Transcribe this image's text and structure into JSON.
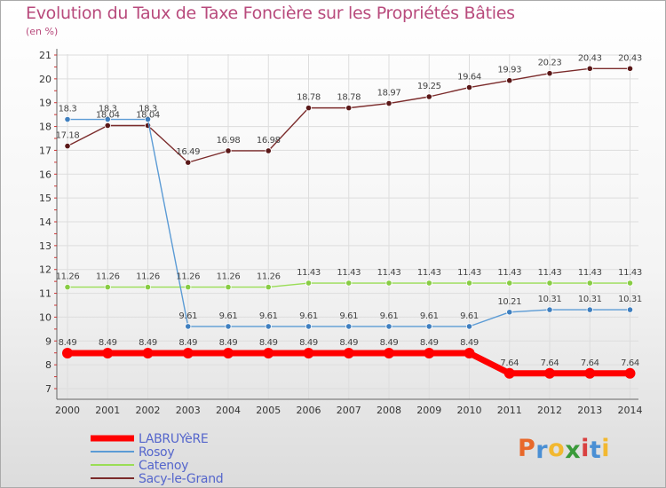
{
  "chart_data": {
    "type": "line",
    "title": "Evolution du Taux de Taxe Foncière sur les Propriétés Bâties",
    "ylabel": "(en %)",
    "xlabel": "",
    "x": [
      "2000",
      "2001",
      "2002",
      "2003",
      "2004",
      "2005",
      "2006",
      "2007",
      "2008",
      "2009",
      "2010",
      "2011",
      "2012",
      "2013",
      "2014"
    ],
    "ylim": [
      7,
      21
    ],
    "yticks": [
      "7",
      "8",
      "9",
      "10",
      "11",
      "12",
      "13",
      "14",
      "15",
      "16",
      "17",
      "18",
      "19",
      "20",
      "21"
    ],
    "grid": true,
    "legend_position": "bottom-left",
    "series": [
      {
        "name": "LABRUYèRE",
        "color": "#ff0000",
        "marker_color": "#ff0000",
        "values": [
          8.49,
          8.49,
          8.49,
          8.49,
          8.49,
          8.49,
          8.49,
          8.49,
          8.49,
          8.49,
          8.49,
          7.64,
          7.64,
          7.64,
          7.64
        ],
        "labels": [
          "8.49",
          "8.49",
          "8.49",
          "8.49",
          "8.49",
          "8.49",
          "8.49",
          "8.49",
          "8.49",
          "8.49",
          "8.49",
          "7.64",
          "7.64",
          "7.64",
          "7.64"
        ],
        "thick": true
      },
      {
        "name": "Rosoy",
        "color": "#5b9bd5",
        "marker_color": "#3f7fbf",
        "values": [
          18.3,
          18.3,
          18.3,
          9.61,
          9.61,
          9.61,
          9.61,
          9.61,
          9.61,
          9.61,
          9.61,
          10.21,
          10.31,
          10.31,
          10.31
        ],
        "labels": [
          "18.3",
          "18.3",
          "18.3",
          "9.61",
          "9.61",
          "9.61",
          "9.61",
          "9.61",
          "9.61",
          "9.61",
          "9.61",
          "10.21",
          "10.31",
          "10.31",
          "10.31"
        ],
        "thick": false
      },
      {
        "name": "Catenoy",
        "color": "#99dd55",
        "marker_color": "#88cc44",
        "values": [
          11.26,
          11.26,
          11.26,
          11.26,
          11.26,
          11.26,
          11.43,
          11.43,
          11.43,
          11.43,
          11.43,
          11.43,
          11.43,
          11.43,
          11.43
        ],
        "labels": [
          "11.26",
          "11.26",
          "11.26",
          "11.26",
          "11.26",
          "11.26",
          "11.43",
          "11.43",
          "11.43",
          "11.43",
          "11.43",
          "11.43",
          "11.43",
          "11.43",
          "11.43"
        ],
        "thick": false
      },
      {
        "name": "Sacy-le-Grand",
        "color": "#7b2b2b",
        "marker_color": "#5a1818",
        "values": [
          17.18,
          18.04,
          18.04,
          16.49,
          16.98,
          16.98,
          18.78,
          18.78,
          18.97,
          19.25,
          19.64,
          19.93,
          20.23,
          20.43,
          20.43
        ],
        "labels": [
          "17.18",
          "18.04",
          "18.04",
          "16.49",
          "16.98",
          "16.98",
          "18.78",
          "18.78",
          "18.97",
          "19.25",
          "19.64",
          "19.93",
          "20.23",
          "20.43",
          "20.43"
        ],
        "thick": false
      }
    ]
  },
  "logo": {
    "text": "Proxiti",
    "colors": [
      "#e8682a",
      "#4a8fd4",
      "#f2b830",
      "#3a9a3a",
      "#d94040",
      "#4a8fd4",
      "#f2b830"
    ]
  }
}
